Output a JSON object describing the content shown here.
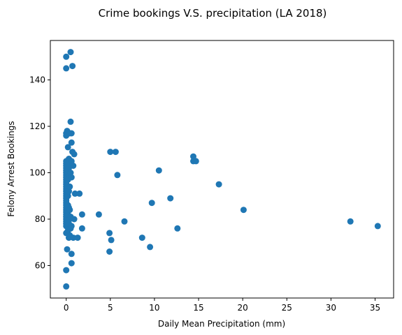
{
  "chart_data": {
    "type": "scatter",
    "title": "Crime bookings V.S. precipitation (LA 2018)",
    "xlabel": "Daily Mean Precipitation (mm)",
    "ylabel": "Felony Arrest Bookings",
    "xlim": [
      -1.8,
      37.1
    ],
    "ylim": [
      46,
      157
    ],
    "xticks": [
      0,
      5,
      10,
      15,
      20,
      25,
      30,
      35
    ],
    "xtick_labels": [
      "0",
      "5",
      "10",
      "15",
      "20",
      "25",
      "30",
      "35"
    ],
    "yticks": [
      60,
      80,
      100,
      120,
      140
    ],
    "ytick_labels": [
      "60",
      "80",
      "100",
      "120",
      "140"
    ],
    "grid": false,
    "legend": false,
    "marker_color": "#1f77b4",
    "points": [
      {
        "x": 0.0,
        "y": 51
      },
      {
        "x": 0.0,
        "y": 58
      },
      {
        "x": 0.1,
        "y": 67
      },
      {
        "x": 0.0,
        "y": 74
      },
      {
        "x": 0.0,
        "y": 77
      },
      {
        "x": 0.0,
        "y": 78
      },
      {
        "x": 0.0,
        "y": 79
      },
      {
        "x": 0.0,
        "y": 80
      },
      {
        "x": 0.0,
        "y": 81
      },
      {
        "x": 0.0,
        "y": 82
      },
      {
        "x": 0.0,
        "y": 83
      },
      {
        "x": 0.0,
        "y": 84
      },
      {
        "x": 0.0,
        "y": 85
      },
      {
        "x": 0.0,
        "y": 86
      },
      {
        "x": 0.0,
        "y": 87
      },
      {
        "x": 0.0,
        "y": 88
      },
      {
        "x": 0.0,
        "y": 89
      },
      {
        "x": 0.0,
        "y": 90
      },
      {
        "x": 0.0,
        "y": 91
      },
      {
        "x": 0.0,
        "y": 92
      },
      {
        "x": 0.0,
        "y": 93
      },
      {
        "x": 0.0,
        "y": 94
      },
      {
        "x": 0.0,
        "y": 95
      },
      {
        "x": 0.0,
        "y": 96
      },
      {
        "x": 0.0,
        "y": 97
      },
      {
        "x": 0.0,
        "y": 98
      },
      {
        "x": 0.0,
        "y": 99
      },
      {
        "x": 0.0,
        "y": 100
      },
      {
        "x": 0.0,
        "y": 101
      },
      {
        "x": 0.0,
        "y": 102
      },
      {
        "x": 0.0,
        "y": 103
      },
      {
        "x": 0.0,
        "y": 104
      },
      {
        "x": 0.0,
        "y": 105
      },
      {
        "x": 0.0,
        "y": 116
      },
      {
        "x": 0.0,
        "y": 117
      },
      {
        "x": 0.1,
        "y": 118
      },
      {
        "x": 0.0,
        "y": 145
      },
      {
        "x": 0.0,
        "y": 150
      },
      {
        "x": 0.2,
        "y": 75
      },
      {
        "x": 0.2,
        "y": 79
      },
      {
        "x": 0.2,
        "y": 82
      },
      {
        "x": 0.2,
        "y": 86
      },
      {
        "x": 0.2,
        "y": 90
      },
      {
        "x": 0.2,
        "y": 94
      },
      {
        "x": 0.2,
        "y": 97
      },
      {
        "x": 0.2,
        "y": 100
      },
      {
        "x": 0.2,
        "y": 103
      },
      {
        "x": 0.2,
        "y": 111
      },
      {
        "x": 0.3,
        "y": 72
      },
      {
        "x": 0.3,
        "y": 78
      },
      {
        "x": 0.3,
        "y": 85
      },
      {
        "x": 0.3,
        "y": 92
      },
      {
        "x": 0.3,
        "y": 98
      },
      {
        "x": 0.3,
        "y": 102
      },
      {
        "x": 0.3,
        "y": 106
      },
      {
        "x": 0.4,
        "y": 73
      },
      {
        "x": 0.4,
        "y": 80
      },
      {
        "x": 0.4,
        "y": 84
      },
      {
        "x": 0.4,
        "y": 94
      },
      {
        "x": 0.4,
        "y": 99
      },
      {
        "x": 0.4,
        "y": 105
      },
      {
        "x": 0.4,
        "y": 117
      },
      {
        "x": 0.5,
        "y": 122
      },
      {
        "x": 0.5,
        "y": 152
      },
      {
        "x": 0.5,
        "y": 76
      },
      {
        "x": 0.5,
        "y": 81
      },
      {
        "x": 0.5,
        "y": 100
      },
      {
        "x": 0.6,
        "y": 61
      },
      {
        "x": 0.6,
        "y": 65
      },
      {
        "x": 0.6,
        "y": 77
      },
      {
        "x": 0.6,
        "y": 98
      },
      {
        "x": 0.6,
        "y": 105
      },
      {
        "x": 0.6,
        "y": 113
      },
      {
        "x": 0.6,
        "y": 117
      },
      {
        "x": 0.7,
        "y": 109
      },
      {
        "x": 0.7,
        "y": 146
      },
      {
        "x": 0.8,
        "y": 72
      },
      {
        "x": 0.8,
        "y": 103
      },
      {
        "x": 0.9,
        "y": 108
      },
      {
        "x": 0.9,
        "y": 80
      },
      {
        "x": 1.0,
        "y": 91
      },
      {
        "x": 1.3,
        "y": 72
      },
      {
        "x": 1.5,
        "y": 91
      },
      {
        "x": 1.8,
        "y": 82
      },
      {
        "x": 1.8,
        "y": 76
      },
      {
        "x": 3.7,
        "y": 82
      },
      {
        "x": 4.9,
        "y": 66
      },
      {
        "x": 4.9,
        "y": 74
      },
      {
        "x": 5.0,
        "y": 109
      },
      {
        "x": 5.1,
        "y": 71
      },
      {
        "x": 5.6,
        "y": 109
      },
      {
        "x": 5.8,
        "y": 99
      },
      {
        "x": 6.6,
        "y": 79
      },
      {
        "x": 8.6,
        "y": 72
      },
      {
        "x": 9.5,
        "y": 68
      },
      {
        "x": 9.7,
        "y": 87
      },
      {
        "x": 10.5,
        "y": 101
      },
      {
        "x": 11.8,
        "y": 89
      },
      {
        "x": 12.6,
        "y": 76
      },
      {
        "x": 14.4,
        "y": 107
      },
      {
        "x": 14.4,
        "y": 105
      },
      {
        "x": 14.7,
        "y": 105
      },
      {
        "x": 17.3,
        "y": 95
      },
      {
        "x": 20.1,
        "y": 84
      },
      {
        "x": 32.2,
        "y": 79
      },
      {
        "x": 35.3,
        "y": 77
      }
    ]
  }
}
